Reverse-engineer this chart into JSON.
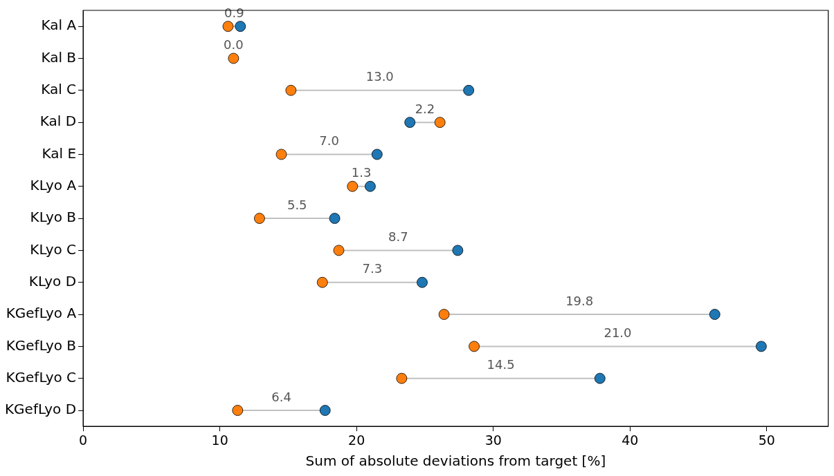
{
  "chart_data": {
    "type": "scatter",
    "orientation": "horizontal",
    "xlabel": "Sum of absolute deviations from target [%]",
    "categories": [
      "Kal A",
      "Kal B",
      "Kal C",
      "Kal D",
      "Kal E",
      "KLyo A",
      "KLyo B",
      "KLyo C",
      "KLyo D",
      "KGefLyo A",
      "KGefLyo B",
      "KGefLyo C",
      "KGefLyo D"
    ],
    "xlim": [
      0,
      54.5
    ],
    "xticks": [
      0,
      10,
      20,
      30,
      40,
      50
    ],
    "grid": false,
    "marker": "circle",
    "series": [
      {
        "color": "#1f77b4",
        "values": [
          11.5,
          null,
          28.2,
          23.9,
          21.5,
          21.0,
          18.4,
          27.4,
          24.8,
          46.2,
          49.6,
          37.8,
          17.7
        ]
      },
      {
        "color": "#ff7f0e",
        "values": [
          10.6,
          11.0,
          15.2,
          26.1,
          14.5,
          19.7,
          12.9,
          18.7,
          17.5,
          26.4,
          28.6,
          23.3,
          11.3
        ]
      }
    ],
    "annotations": [
      "0.9",
      "0.0",
      "13.0",
      "2.2",
      "7.0",
      "1.3",
      "5.5",
      "8.7",
      "7.3",
      "19.8",
      "21.0",
      "14.5",
      "6.4"
    ]
  }
}
